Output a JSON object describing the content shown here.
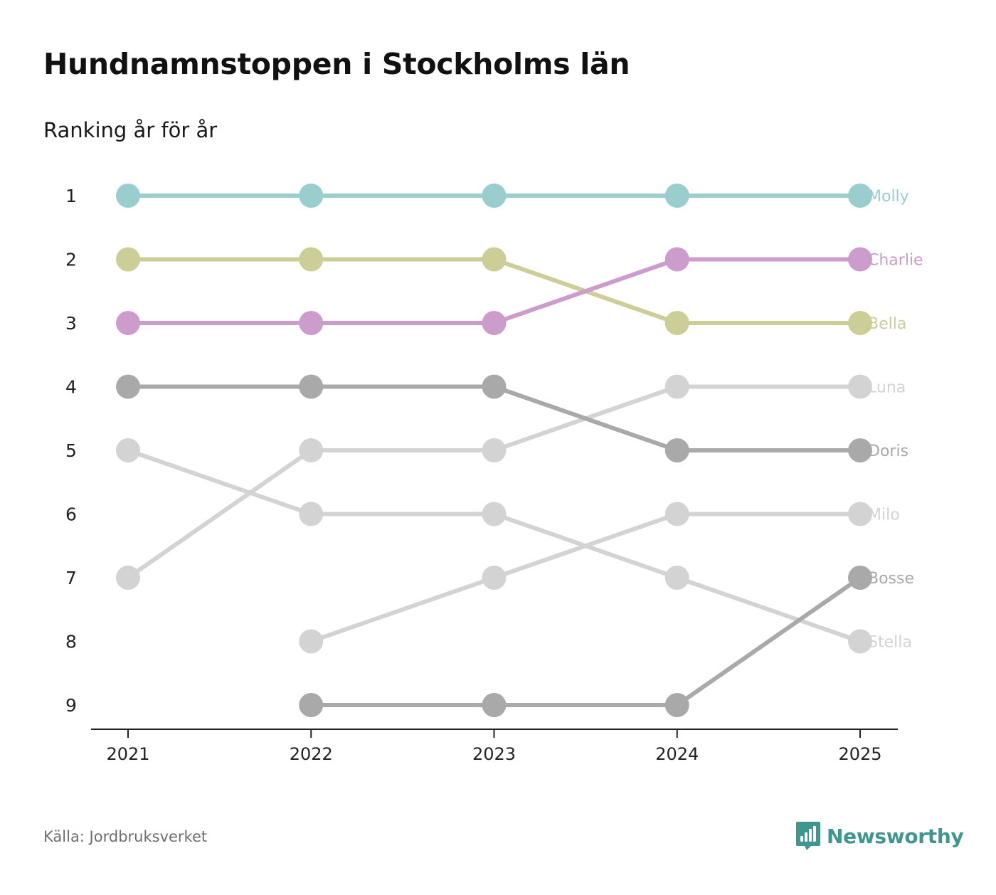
{
  "header": {
    "title": "Hundnamnstoppen i Stockholms län",
    "subtitle": "Ranking år för år"
  },
  "footer": {
    "source": "Källa: Jordbruksverket",
    "brand": "Newsworthy",
    "brand_icon": "newsworthy-logo-icon",
    "brand_color": "#3f968e"
  },
  "chart_data": {
    "type": "line",
    "title": "Hundnamnstoppen i Stockholms län",
    "subtitle": "Ranking år för år",
    "xlabel": "",
    "ylabel": "",
    "x": [
      "2021",
      "2022",
      "2023",
      "2024",
      "2025"
    ],
    "y_ticks": [
      "1",
      "2",
      "3",
      "4",
      "5",
      "6",
      "7",
      "8",
      "9"
    ],
    "ylim": [
      1,
      9
    ],
    "y_inverted": true,
    "grid": false,
    "legend": "direct labels right",
    "series": [
      {
        "name": "Luna",
        "color": "#d3d3d3",
        "values": [
          7,
          5,
          5,
          4,
          4
        ]
      },
      {
        "name": "Milo",
        "color": "#d3d3d3",
        "values": [
          null,
          8,
          7,
          6,
          6
        ]
      },
      {
        "name": "Stella",
        "color": "#d3d3d3",
        "values": [
          5,
          6,
          6,
          7,
          8
        ]
      },
      {
        "name": "Doris",
        "color": "#a9a9a9",
        "values": [
          4,
          4,
          4,
          5,
          5
        ]
      },
      {
        "name": "Bosse",
        "color": "#a9a9a9",
        "values": [
          null,
          9,
          9,
          9,
          7
        ]
      },
      {
        "name": "Bella",
        "color": "#cdcd98",
        "values": [
          2,
          2,
          2,
          3,
          3
        ]
      },
      {
        "name": "Charlie",
        "color": "#cc9ccd",
        "values": [
          3,
          3,
          3,
          2,
          2
        ]
      },
      {
        "name": "Molly",
        "color": "#9acdcd",
        "values": [
          1,
          1,
          1,
          1,
          1
        ]
      }
    ]
  }
}
